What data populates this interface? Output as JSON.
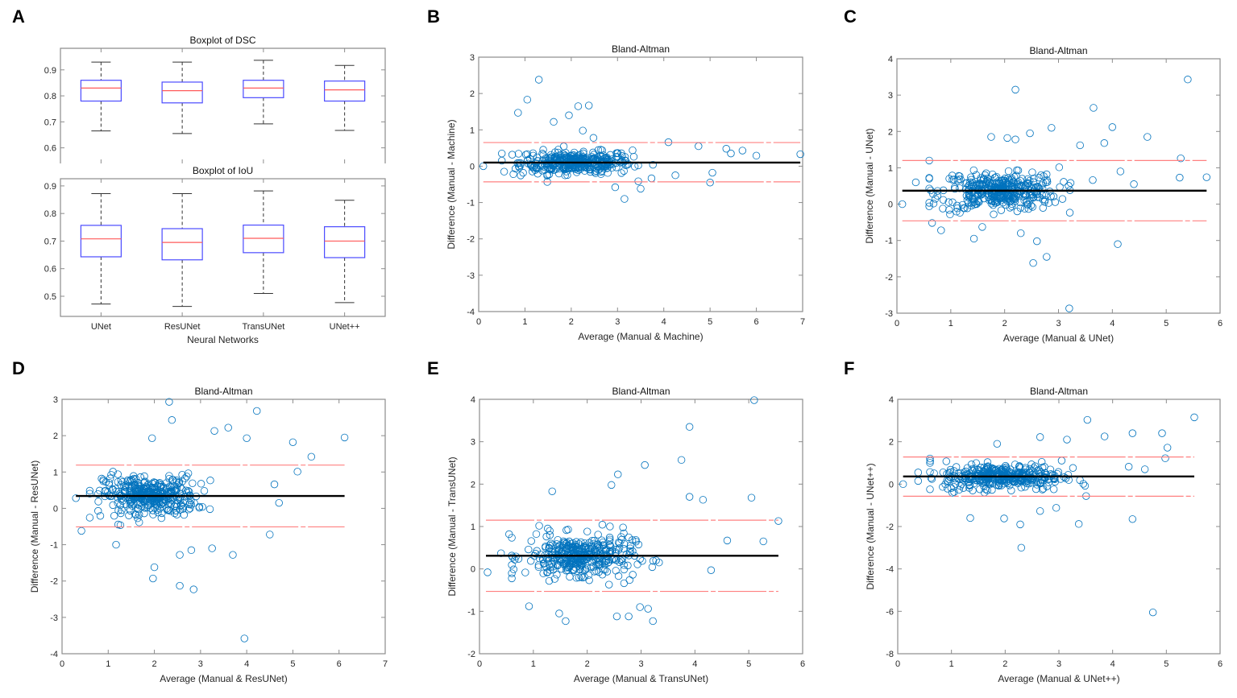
{
  "panel_labels": [
    "A",
    "B",
    "C",
    "D",
    "E",
    "F"
  ],
  "chart_data": [
    {
      "id": "A-top",
      "type": "boxplot",
      "title": "Boxplot of DSC",
      "xlabel": "",
      "ylabel": "",
      "categories": [
        "UNet",
        "ResUNet",
        "TransUNet",
        "UNet++"
      ],
      "ylim": [
        0.54,
        0.983
      ],
      "yticks": [
        0.6,
        0.7,
        0.8,
        0.9
      ],
      "show_xticklabels": false,
      "boxes": [
        {
          "whisker_high": 0.93,
          "q3": 0.86,
          "median": 0.83,
          "q1": 0.78,
          "whisker_low": 0.665
        },
        {
          "whisker_high": 0.93,
          "q3": 0.853,
          "median": 0.82,
          "q1": 0.773,
          "whisker_low": 0.655
        },
        {
          "whisker_high": 0.937,
          "q3": 0.86,
          "median": 0.83,
          "q1": 0.793,
          "whisker_low": 0.692
        },
        {
          "whisker_high": 0.917,
          "q3": 0.857,
          "median": 0.823,
          "q1": 0.78,
          "whisker_low": 0.667
        }
      ]
    },
    {
      "id": "A-bottom",
      "type": "boxplot",
      "title": "Boxplot of IoU",
      "xlabel": "Neural Networks",
      "ylabel": "",
      "categories": [
        "UNet",
        "ResUNet",
        "TransUNet",
        "UNet++"
      ],
      "ylim": [
        0.427,
        0.926
      ],
      "yticks": [
        0.5,
        0.6,
        0.7,
        0.8,
        0.9
      ],
      "show_xticklabels": true,
      "boxes": [
        {
          "whisker_high": 0.872,
          "q3": 0.757,
          "median": 0.708,
          "q1": 0.643,
          "whisker_low": 0.472
        },
        {
          "whisker_high": 0.872,
          "q3": 0.745,
          "median": 0.695,
          "q1": 0.632,
          "whisker_low": 0.463
        },
        {
          "whisker_high": 0.882,
          "q3": 0.758,
          "median": 0.71,
          "q1": 0.658,
          "whisker_low": 0.51
        },
        {
          "whisker_high": 0.848,
          "q3": 0.752,
          "median": 0.7,
          "q1": 0.64,
          "whisker_low": 0.477
        }
      ]
    },
    {
      "id": "B",
      "type": "scatter",
      "title": "Bland-Altman",
      "xlabel": "Average (Manual & Machine)",
      "ylabel": "Difference (Manual - Machine)",
      "xlim": [
        0,
        7
      ],
      "ylim": [
        -4,
        3
      ],
      "xticks": [
        0,
        1,
        2,
        3,
        4,
        5,
        6,
        7
      ],
      "yticks": [
        -4,
        -3,
        -2,
        -1,
        0,
        1,
        2,
        3
      ],
      "mean_diff": 0.1,
      "loa_upper": 0.65,
      "loa_lower": -0.43,
      "line_x_range": [
        0.1,
        6.95
      ],
      "cluster": {
        "x_mean": 2.1,
        "x_sd": 0.6,
        "x_range": [
          0.5,
          4.5
        ],
        "y_mean": 0.1,
        "y_sd": 0.2,
        "count": 380
      },
      "points": [
        [
          0.1,
          0
        ],
        [
          0.85,
          1.47
        ],
        [
          1.05,
          1.83
        ],
        [
          1.3,
          2.38
        ],
        [
          1.62,
          1.22
        ],
        [
          1.95,
          1.4
        ],
        [
          2.15,
          1.65
        ],
        [
          2.38,
          1.67
        ],
        [
          2.25,
          0.98
        ],
        [
          2.48,
          0.78
        ],
        [
          3.15,
          -0.9
        ],
        [
          3.5,
          -0.62
        ],
        [
          5.0,
          -0.45
        ],
        [
          5.05,
          -0.18
        ],
        [
          5.35,
          0.48
        ],
        [
          5.7,
          0.43
        ],
        [
          6.0,
          0.29
        ],
        [
          6.95,
          0.33
        ],
        [
          5.45,
          0.35
        ],
        [
          4.1,
          0.66
        ],
        [
          4.75,
          0.55
        ],
        [
          0.55,
          -0.15
        ],
        [
          0.75,
          -0.22
        ],
        [
          2.95,
          -0.58
        ],
        [
          4.25,
          -0.25
        ]
      ]
    },
    {
      "id": "C",
      "type": "scatter",
      "title": "Bland-Altman",
      "xlabel": "Average (Manual & UNet)",
      "ylabel": "Difference (Manual - UNet)",
      "xlim": [
        0,
        6
      ],
      "ylim": [
        -3,
        4
      ],
      "xticks": [
        0,
        1,
        2,
        3,
        4,
        5,
        6
      ],
      "yticks": [
        -3,
        -2,
        -1,
        0,
        1,
        2,
        3,
        4
      ],
      "mean_diff": 0.37,
      "loa_upper": 1.2,
      "loa_lower": -0.46,
      "line_x_range": [
        0.1,
        5.75
      ],
      "cluster": {
        "x_mean": 1.9,
        "x_sd": 0.55,
        "x_range": [
          0.6,
          4.4
        ],
        "y_mean": 0.35,
        "y_sd": 0.35,
        "count": 380
      },
      "points": [
        [
          0.1,
          0
        ],
        [
          2.2,
          3.15
        ],
        [
          5.4,
          3.43
        ],
        [
          3.65,
          2.65
        ],
        [
          2.87,
          2.1
        ],
        [
          4.0,
          2.12
        ],
        [
          4.65,
          1.85
        ],
        [
          1.75,
          1.85
        ],
        [
          2.47,
          1.95
        ],
        [
          5.27,
          1.26
        ],
        [
          5.25,
          0.73
        ],
        [
          5.75,
          0.74
        ],
        [
          3.2,
          -2.87
        ],
        [
          2.53,
          -1.62
        ],
        [
          2.78,
          -1.45
        ],
        [
          4.1,
          -1.1
        ],
        [
          1.43,
          -0.95
        ],
        [
          2.6,
          -1.02
        ],
        [
          0.6,
          1.2
        ],
        [
          0.35,
          0.6
        ],
        [
          0.82,
          -0.72
        ],
        [
          4.4,
          0.55
        ],
        [
          4.15,
          0.9
        ],
        [
          3.85,
          1.68
        ],
        [
          2.05,
          1.82
        ],
        [
          2.2,
          1.78
        ],
        [
          3.4,
          1.62
        ],
        [
          2.3,
          -0.8
        ]
      ]
    },
    {
      "id": "D",
      "type": "scatter",
      "title": "Bland-Altman",
      "xlabel": "Average (Manual & ResUNet)",
      "ylabel": "Difference (Manual - ResUNet)",
      "xlim": [
        0,
        7
      ],
      "ylim": [
        -4,
        3
      ],
      "xticks": [
        0,
        1,
        2,
        3,
        4,
        5,
        6,
        7
      ],
      "yticks": [
        -4,
        -3,
        -2,
        -1,
        0,
        1,
        2,
        3
      ],
      "mean_diff": 0.34,
      "loa_upper": 1.19,
      "loa_lower": -0.51,
      "line_x_range": [
        0.3,
        6.12
      ],
      "cluster": {
        "x_mean": 1.9,
        "x_sd": 0.5,
        "x_range": [
          0.6,
          4.3
        ],
        "y_mean": 0.35,
        "y_sd": 0.35,
        "count": 380
      },
      "points": [
        [
          0.3,
          0.28
        ],
        [
          2.32,
          2.93
        ],
        [
          4.22,
          2.68
        ],
        [
          2.38,
          2.43
        ],
        [
          3.6,
          2.22
        ],
        [
          3.3,
          2.13
        ],
        [
          1.95,
          1.93
        ],
        [
          6.12,
          1.95
        ],
        [
          5.0,
          1.82
        ],
        [
          5.4,
          1.42
        ],
        [
          5.1,
          1.01
        ],
        [
          4.0,
          1.93
        ],
        [
          1.97,
          -1.93
        ],
        [
          2.0,
          -1.62
        ],
        [
          2.55,
          -2.13
        ],
        [
          2.85,
          -2.23
        ],
        [
          3.95,
          -3.58
        ],
        [
          3.7,
          -1.28
        ],
        [
          2.55,
          -1.28
        ],
        [
          3.25,
          -1.1
        ],
        [
          1.17,
          -1.0
        ],
        [
          4.5,
          -0.72
        ],
        [
          0.42,
          -0.62
        ],
        [
          4.7,
          0.15
        ],
        [
          4.6,
          0.66
        ],
        [
          2.8,
          -1.15
        ]
      ]
    },
    {
      "id": "E",
      "type": "scatter",
      "title": "Bland-Altman",
      "xlabel": "Average (Manual & TransUNet)",
      "ylabel": "Difference (Manual - TransUNet)",
      "xlim": [
        0,
        6
      ],
      "ylim": [
        -2,
        4
      ],
      "xticks": [
        0,
        1,
        2,
        3,
        4,
        5,
        6
      ],
      "yticks": [
        -2,
        -1,
        0,
        1,
        2,
        3,
        4
      ],
      "mean_diff": 0.31,
      "loa_upper": 1.15,
      "loa_lower": -0.53,
      "line_x_range": [
        0.12,
        5.55
      ],
      "cluster": {
        "x_mean": 1.85,
        "x_sd": 0.5,
        "x_range": [
          0.6,
          4.3
        ],
        "y_mean": 0.3,
        "y_sd": 0.35,
        "count": 380
      },
      "points": [
        [
          0.15,
          -0.08
        ],
        [
          0.4,
          0.37
        ],
        [
          5.1,
          3.98
        ],
        [
          3.9,
          3.35
        ],
        [
          3.75,
          2.57
        ],
        [
          3.07,
          2.45
        ],
        [
          2.57,
          2.23
        ],
        [
          2.45,
          1.98
        ],
        [
          1.35,
          1.83
        ],
        [
          5.05,
          1.68
        ],
        [
          5.55,
          1.13
        ],
        [
          5.27,
          0.65
        ],
        [
          4.6,
          0.67
        ],
        [
          3.22,
          -1.23
        ],
        [
          1.6,
          -1.23
        ],
        [
          1.48,
          -1.05
        ],
        [
          2.55,
          -1.12
        ],
        [
          2.77,
          -1.12
        ],
        [
          2.98,
          -0.9
        ],
        [
          3.13,
          -0.94
        ],
        [
          0.92,
          -0.88
        ],
        [
          4.3,
          -0.03
        ],
        [
          0.55,
          0.82
        ],
        [
          4.15,
          1.63
        ],
        [
          3.9,
          1.7
        ]
      ]
    },
    {
      "id": "F",
      "type": "scatter",
      "title": "Bland-Altman",
      "xlabel": "Average (Manual & UNet++)",
      "ylabel": "Difference (Manual - UNet++)",
      "xlim": [
        0,
        6
      ],
      "ylim": [
        -8,
        4
      ],
      "xticks": [
        0,
        1,
        2,
        3,
        4,
        5,
        6
      ],
      "yticks": [
        -8,
        -6,
        -4,
        -2,
        0,
        2,
        4
      ],
      "mean_diff": 0.36,
      "loa_upper": 1.28,
      "loa_lower": -0.57,
      "line_x_range": [
        0.1,
        5.52
      ],
      "cluster": {
        "x_mean": 1.95,
        "x_sd": 0.55,
        "x_range": [
          0.6,
          4.4
        ],
        "y_mean": 0.36,
        "y_sd": 0.4,
        "count": 380
      },
      "points": [
        [
          0.1,
          0
        ],
        [
          4.75,
          -6.05
        ],
        [
          2.3,
          -3.0
        ],
        [
          5.52,
          3.15
        ],
        [
          3.53,
          3.03
        ],
        [
          4.37,
          2.4
        ],
        [
          4.92,
          2.4
        ],
        [
          5.02,
          1.72
        ],
        [
          4.98,
          1.22
        ],
        [
          2.65,
          2.22
        ],
        [
          3.85,
          2.25
        ],
        [
          1.35,
          -1.6
        ],
        [
          1.98,
          -1.62
        ],
        [
          2.28,
          -1.9
        ],
        [
          3.37,
          -1.88
        ],
        [
          4.37,
          -1.65
        ],
        [
          2.95,
          -1.12
        ],
        [
          2.65,
          -1.27
        ],
        [
          4.6,
          0.7
        ],
        [
          4.3,
          0.82
        ],
        [
          0.38,
          0.55
        ],
        [
          0.38,
          0.15
        ],
        [
          3.15,
          2.1
        ],
        [
          1.85,
          1.9
        ]
      ]
    }
  ],
  "colors": {
    "marker": "#0072BD",
    "box": "#4b4bff",
    "median": "#ff5a5a",
    "loa": "#ff8080",
    "mean": "#000000",
    "axis": "#8c8c8c"
  }
}
